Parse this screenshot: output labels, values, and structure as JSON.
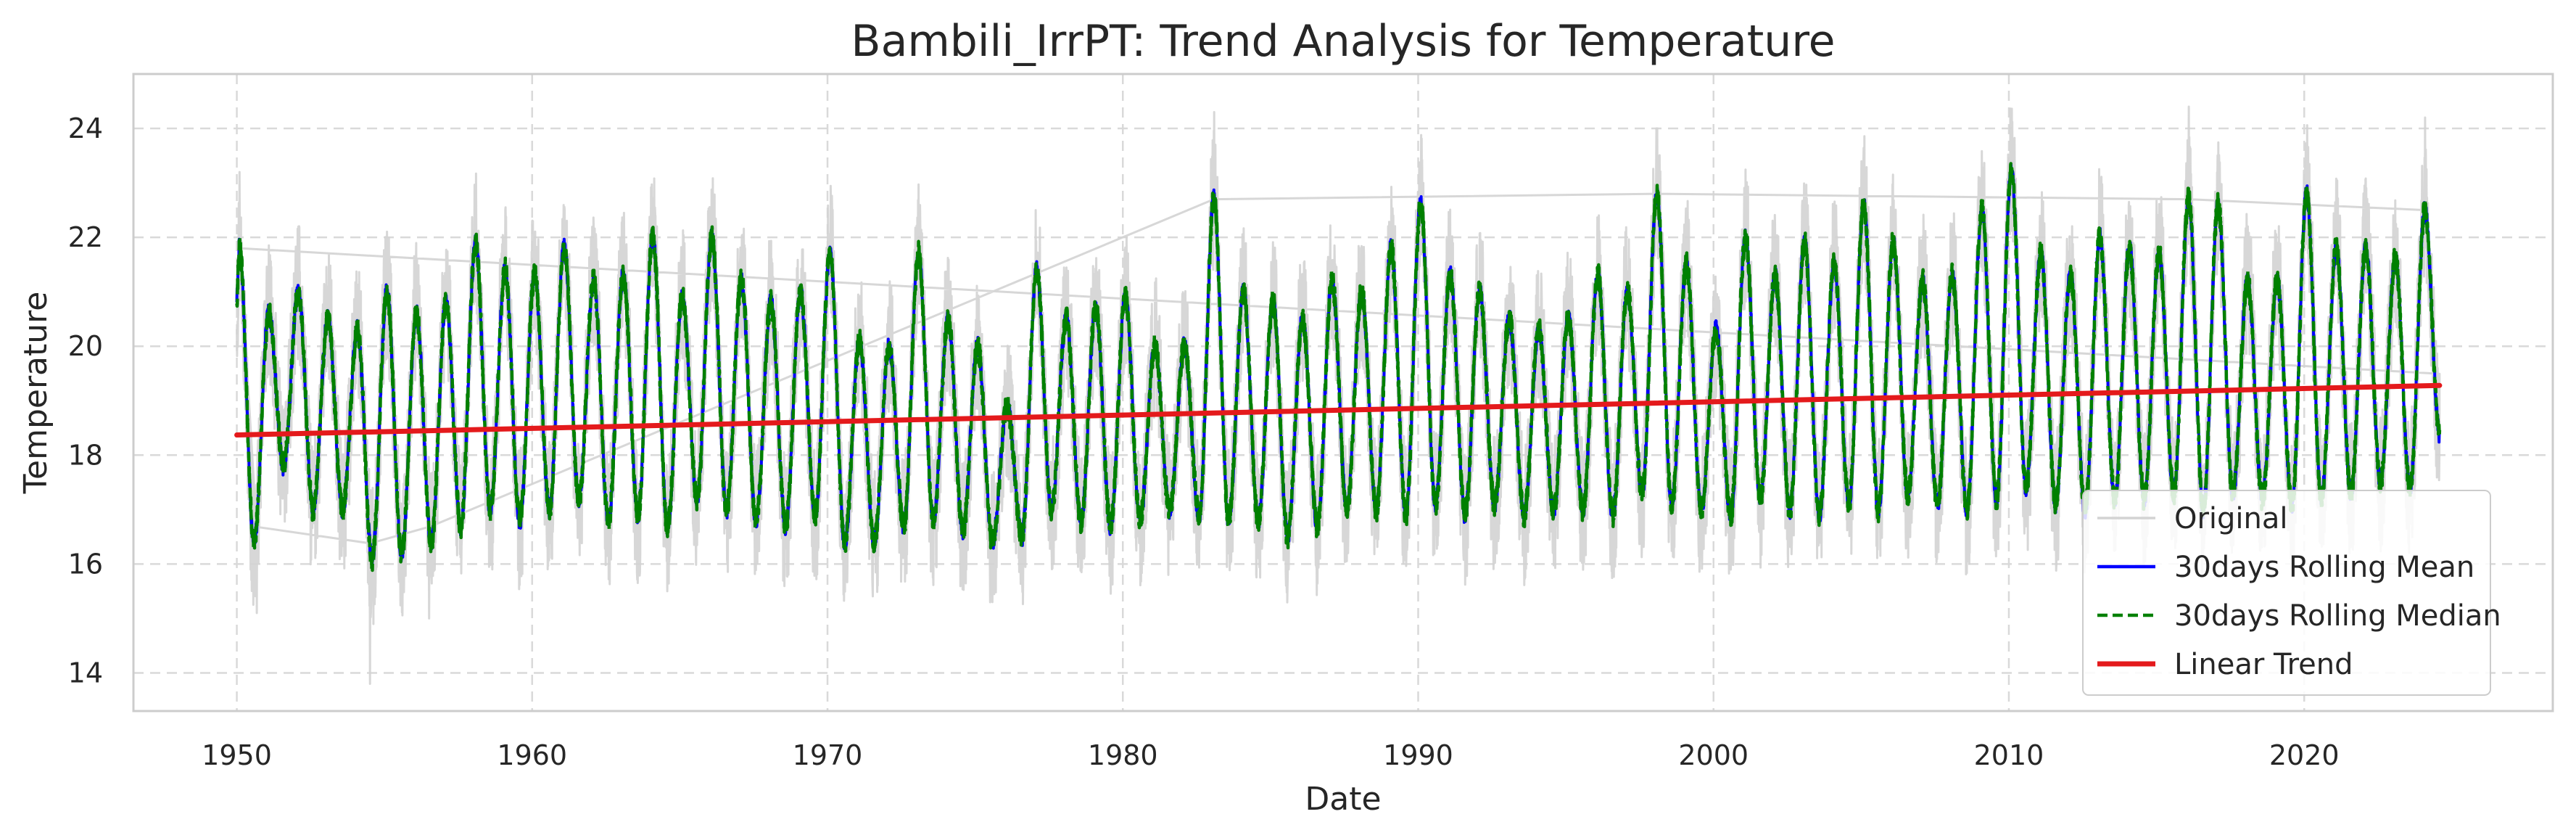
{
  "chart_data": {
    "type": "line",
    "title": "Bambili_IrrPT: Trend Analysis for Temperature",
    "xlabel": "Date",
    "ylabel": "Temperature",
    "x_range": [
      "1946-07-01",
      "2028-06-01"
    ],
    "ylim": [
      13.3,
      25.0
    ],
    "x_ticks": [
      1950,
      1960,
      1970,
      1980,
      1990,
      2000,
      2010,
      2020
    ],
    "y_ticks": [
      14,
      16,
      18,
      20,
      22,
      24
    ],
    "grid": true,
    "legend_position": "bottom-right",
    "time_span": [
      "1950-01-01",
      "2024-08-01"
    ],
    "series": [
      {
        "name": "Original",
        "color": "#d3d3d3",
        "style": "solid"
      },
      {
        "name": "30days Rolling Mean",
        "color": "#0000ff",
        "style": "solid"
      },
      {
        "name": "30days Rolling Median",
        "color": "#008000",
        "style": "dashed"
      },
      {
        "name": "Linear Trend",
        "color": "#e41a1c",
        "style": "solid"
      }
    ],
    "linear_trend": {
      "start": {
        "x": "1950-01-01",
        "y": 18.37
      },
      "end": {
        "x": "2024-08-01",
        "y": 19.28
      }
    },
    "yearly_peaks": [
      {
        "x": "1950-02",
        "y": 21.8
      },
      {
        "x": "1951-02",
        "y": 20.6
      },
      {
        "x": "1952-02",
        "y": 21.0
      },
      {
        "x": "1953-02",
        "y": 20.5
      },
      {
        "x": "1954-02",
        "y": 20.3
      },
      {
        "x": "1955-02",
        "y": 21.0
      },
      {
        "x": "1956-02",
        "y": 20.6
      },
      {
        "x": "1957-02",
        "y": 20.8
      },
      {
        "x": "1958-02",
        "y": 21.9
      },
      {
        "x": "1959-02",
        "y": 21.4
      },
      {
        "x": "1960-02",
        "y": 21.3
      },
      {
        "x": "1961-02",
        "y": 21.8
      },
      {
        "x": "1962-02",
        "y": 21.2
      },
      {
        "x": "1963-02",
        "y": 21.3
      },
      {
        "x": "1964-02",
        "y": 22.0
      },
      {
        "x": "1965-02",
        "y": 20.9
      },
      {
        "x": "1966-02",
        "y": 22.0
      },
      {
        "x": "1967-02",
        "y": 21.2
      },
      {
        "x": "1968-02",
        "y": 20.8
      },
      {
        "x": "1969-02",
        "y": 21.0
      },
      {
        "x": "1970-02",
        "y": 21.7
      },
      {
        "x": "1971-02",
        "y": 20.1
      },
      {
        "x": "1972-02",
        "y": 20.0
      },
      {
        "x": "1973-02",
        "y": 21.7
      },
      {
        "x": "1974-02",
        "y": 20.5
      },
      {
        "x": "1975-02",
        "y": 20.0
      },
      {
        "x": "1976-02",
        "y": 18.9
      },
      {
        "x": "1977-02",
        "y": 21.4
      },
      {
        "x": "1978-02",
        "y": 20.5
      },
      {
        "x": "1979-02",
        "y": 20.7
      },
      {
        "x": "1980-02",
        "y": 20.9
      },
      {
        "x": "1981-02",
        "y": 20.0
      },
      {
        "x": "1982-02",
        "y": 20.0
      },
      {
        "x": "1983-02",
        "y": 22.7
      },
      {
        "x": "1984-02",
        "y": 21.0
      },
      {
        "x": "1985-02",
        "y": 20.8
      },
      {
        "x": "1986-02",
        "y": 20.5
      },
      {
        "x": "1987-02",
        "y": 21.2
      },
      {
        "x": "1988-02",
        "y": 21.0
      },
      {
        "x": "1989-02",
        "y": 21.8
      },
      {
        "x": "1990-02",
        "y": 22.6
      },
      {
        "x": "1991-02",
        "y": 21.3
      },
      {
        "x": "1992-02",
        "y": 21.0
      },
      {
        "x": "1993-02",
        "y": 20.5
      },
      {
        "x": "1994-02",
        "y": 20.3
      },
      {
        "x": "1995-02",
        "y": 20.5
      },
      {
        "x": "1996-02",
        "y": 21.3
      },
      {
        "x": "1997-02",
        "y": 21.0
      },
      {
        "x": "1998-02",
        "y": 22.8
      },
      {
        "x": "1999-02",
        "y": 21.5
      },
      {
        "x": "2000-02",
        "y": 20.3
      },
      {
        "x": "2001-02",
        "y": 22.0
      },
      {
        "x": "2002-02",
        "y": 21.3
      },
      {
        "x": "2003-02",
        "y": 21.9
      },
      {
        "x": "2004-02",
        "y": 21.5
      },
      {
        "x": "2005-02",
        "y": 22.6
      },
      {
        "x": "2006-02",
        "y": 21.9
      },
      {
        "x": "2007-02",
        "y": 21.2
      },
      {
        "x": "2008-02",
        "y": 21.3
      },
      {
        "x": "2009-02",
        "y": 22.5
      },
      {
        "x": "2010-02",
        "y": 23.2
      },
      {
        "x": "2011-02",
        "y": 21.7
      },
      {
        "x": "2012-02",
        "y": 21.3
      },
      {
        "x": "2013-02",
        "y": 22.0
      },
      {
        "x": "2014-02",
        "y": 21.8
      },
      {
        "x": "2015-02",
        "y": 21.7
      },
      {
        "x": "2016-02",
        "y": 22.7
      },
      {
        "x": "2017-02",
        "y": 22.6
      },
      {
        "x": "2018-02",
        "y": 21.2
      },
      {
        "x": "2019-02",
        "y": 21.2
      },
      {
        "x": "2020-02",
        "y": 22.8
      },
      {
        "x": "2021-02",
        "y": 21.8
      },
      {
        "x": "2022-02",
        "y": 21.8
      },
      {
        "x": "2023-02",
        "y": 21.6
      },
      {
        "x": "2024-02",
        "y": 22.5
      }
    ],
    "yearly_troughs": [
      {
        "x": "1950-08",
        "y": 16.4
      },
      {
        "x": "1951-08",
        "y": 17.8
      },
      {
        "x": "1952-08",
        "y": 17.0
      },
      {
        "x": "1953-08",
        "y": 17.0
      },
      {
        "x": "1954-08",
        "y": 16.1
      },
      {
        "x": "1955-08",
        "y": 16.2
      },
      {
        "x": "1956-08",
        "y": 16.4
      },
      {
        "x": "1957-08",
        "y": 16.7
      },
      {
        "x": "1958-08",
        "y": 17.0
      },
      {
        "x": "1959-08",
        "y": 16.8
      },
      {
        "x": "1960-08",
        "y": 17.0
      },
      {
        "x": "1961-08",
        "y": 17.2
      },
      {
        "x": "1962-08",
        "y": 16.8
      },
      {
        "x": "1963-08",
        "y": 16.9
      },
      {
        "x": "1964-08",
        "y": 16.7
      },
      {
        "x": "1965-08",
        "y": 17.2
      },
      {
        "x": "1966-08",
        "y": 17.0
      },
      {
        "x": "1967-08",
        "y": 16.8
      },
      {
        "x": "1968-08",
        "y": 16.7
      },
      {
        "x": "1969-08",
        "y": 16.9
      },
      {
        "x": "1970-08",
        "y": 16.4
      },
      {
        "x": "1971-08",
        "y": 16.4
      },
      {
        "x": "1972-08",
        "y": 16.7
      },
      {
        "x": "1973-08",
        "y": 16.8
      },
      {
        "x": "1974-08",
        "y": 16.6
      },
      {
        "x": "1975-08",
        "y": 16.4
      },
      {
        "x": "1976-08",
        "y": 16.5
      },
      {
        "x": "1977-08",
        "y": 17.0
      },
      {
        "x": "1978-08",
        "y": 16.8
      },
      {
        "x": "1979-08",
        "y": 16.7
      },
      {
        "x": "1980-08",
        "y": 16.8
      },
      {
        "x": "1981-08",
        "y": 17.0
      },
      {
        "x": "1982-08",
        "y": 16.9
      },
      {
        "x": "1983-08",
        "y": 16.8
      },
      {
        "x": "1984-08",
        "y": 16.8
      },
      {
        "x": "1985-08",
        "y": 16.5
      },
      {
        "x": "1986-08",
        "y": 16.7
      },
      {
        "x": "1987-08",
        "y": 17.0
      },
      {
        "x": "1988-08",
        "y": 17.0
      },
      {
        "x": "1989-08",
        "y": 16.9
      },
      {
        "x": "1990-08",
        "y": 17.1
      },
      {
        "x": "1991-08",
        "y": 16.9
      },
      {
        "x": "1992-08",
        "y": 17.1
      },
      {
        "x": "1993-08",
        "y": 16.9
      },
      {
        "x": "1994-08",
        "y": 17.0
      },
      {
        "x": "1995-08",
        "y": 17.0
      },
      {
        "x": "1996-08",
        "y": 16.9
      },
      {
        "x": "1997-08",
        "y": 17.3
      },
      {
        "x": "1998-08",
        "y": 17.1
      },
      {
        "x": "1999-08",
        "y": 17.0
      },
      {
        "x": "2000-08",
        "y": 16.9
      },
      {
        "x": "2001-08",
        "y": 17.2
      },
      {
        "x": "2002-08",
        "y": 17.0
      },
      {
        "x": "2003-08",
        "y": 16.9
      },
      {
        "x": "2004-08",
        "y": 17.1
      },
      {
        "x": "2005-08",
        "y": 17.0
      },
      {
        "x": "2006-08",
        "y": 17.3
      },
      {
        "x": "2007-08",
        "y": 17.1
      },
      {
        "x": "2008-08",
        "y": 17.0
      },
      {
        "x": "2009-08",
        "y": 17.2
      },
      {
        "x": "2010-08",
        "y": 17.4
      },
      {
        "x": "2011-08",
        "y": 17.1
      },
      {
        "x": "2012-08",
        "y": 17.0
      },
      {
        "x": "2013-08",
        "y": 17.2
      },
      {
        "x": "2014-08",
        "y": 17.2
      },
      {
        "x": "2015-08",
        "y": 17.3
      },
      {
        "x": "2016-08",
        "y": 17.0
      },
      {
        "x": "2017-08",
        "y": 17.3
      },
      {
        "x": "2018-08",
        "y": 17.2
      },
      {
        "x": "2019-08",
        "y": 17.1
      },
      {
        "x": "2020-08",
        "y": 17.2
      },
      {
        "x": "2021-08",
        "y": 17.3
      },
      {
        "x": "2022-08",
        "y": 17.5
      },
      {
        "x": "2023-08",
        "y": 17.4
      }
    ],
    "original_extremes": [
      {
        "x": "1950-02",
        "y": 23.2
      },
      {
        "x": "1950-09",
        "y": 15.1
      },
      {
        "x": "1954-07",
        "y": 13.8
      },
      {
        "x": "1956-07",
        "y": 15.0
      },
      {
        "x": "1983-02",
        "y": 24.3
      },
      {
        "x": "1998-02",
        "y": 24.0
      },
      {
        "x": "2016-02",
        "y": 24.4
      },
      {
        "x": "2024-02",
        "y": 24.2
      }
    ]
  }
}
